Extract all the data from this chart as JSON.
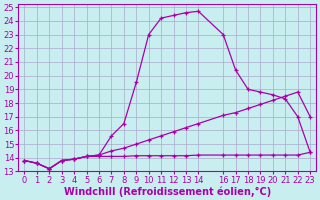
{
  "xlabel": "Windchill (Refroidissement éolien,°C)",
  "background_color": "#c8eef0",
  "grid_color": "#aaaacc",
  "line_color": "#aa00aa",
  "xlim": [
    -0.5,
    23.5
  ],
  "ylim": [
    13,
    25.2
  ],
  "xticks": [
    0,
    1,
    2,
    3,
    4,
    5,
    6,
    7,
    8,
    9,
    10,
    11,
    12,
    13,
    14,
    16,
    17,
    18,
    19,
    20,
    21,
    22,
    23
  ],
  "yticks": [
    13,
    14,
    15,
    16,
    17,
    18,
    19,
    20,
    21,
    22,
    23,
    24,
    25
  ],
  "curve1_x": [
    0,
    1,
    2,
    3,
    4,
    5,
    6,
    7,
    8,
    9,
    10,
    11,
    12,
    13,
    14,
    16,
    17,
    18,
    19,
    20,
    21,
    22,
    23
  ],
  "curve1_y": [
    13.8,
    13.6,
    13.2,
    13.8,
    13.9,
    14.1,
    14.2,
    15.6,
    16.5,
    19.5,
    23.0,
    24.2,
    24.4,
    24.6,
    24.7,
    23.0,
    20.4,
    19.0,
    18.8,
    18.6,
    18.3,
    17.0,
    14.4
  ],
  "curve2_x": [
    0,
    1,
    2,
    3,
    4,
    5,
    6,
    7,
    8,
    9,
    10,
    11,
    12,
    13,
    14,
    16,
    17,
    18,
    19,
    20,
    21,
    22,
    23
  ],
  "curve2_y": [
    13.8,
    13.6,
    13.2,
    13.8,
    13.9,
    14.1,
    14.2,
    14.5,
    14.7,
    15.0,
    15.3,
    15.6,
    15.9,
    16.2,
    16.5,
    17.1,
    17.3,
    17.6,
    17.9,
    18.2,
    18.5,
    18.8,
    17.0
  ],
  "curve3_x": [
    0,
    1,
    2,
    3,
    4,
    5,
    6,
    7,
    8,
    9,
    10,
    11,
    12,
    13,
    14,
    16,
    17,
    18,
    19,
    20,
    21,
    22,
    23
  ],
  "curve3_y": [
    13.8,
    13.6,
    13.2,
    13.8,
    13.9,
    14.1,
    14.1,
    14.1,
    14.1,
    14.15,
    14.15,
    14.15,
    14.15,
    14.15,
    14.2,
    14.2,
    14.2,
    14.2,
    14.2,
    14.2,
    14.2,
    14.2,
    14.4
  ],
  "xlabel_fontsize": 7,
  "tick_fontsize": 6
}
